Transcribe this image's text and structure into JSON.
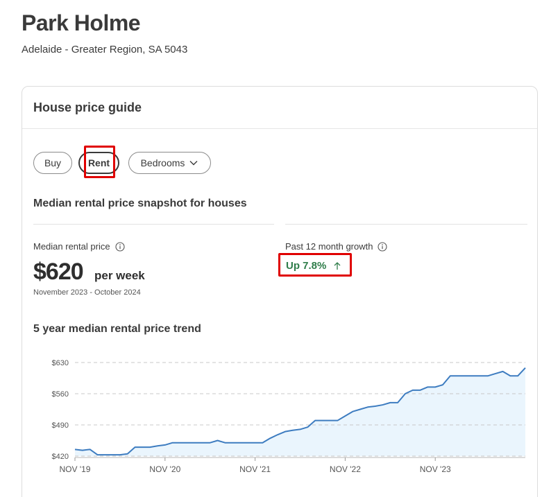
{
  "header": {
    "title": "Park Holme",
    "subtitle": "Adelaide - Greater Region, SA 5043"
  },
  "card": {
    "title": "House price guide",
    "tabs": {
      "buy": "Buy",
      "rent": "Rent",
      "bedrooms": "Bedrooms"
    },
    "snapshot_title": "Median rental price snapshot for houses",
    "median_label": "Median rental price",
    "median_price": "$620",
    "median_unit": "per week",
    "median_period": "November 2023 - October 2024",
    "growth_label": "Past 12 month growth",
    "growth_value": "Up 7.8%",
    "trend_title": "5 year median rental price trend"
  },
  "colors": {
    "line": "#3d7cc0",
    "fill": "#eaf5fd",
    "growth": "#2f7d4a",
    "highlight": "#e00000",
    "grid": "#c8c8c8"
  },
  "icons": {
    "info": "info-icon",
    "chevron": "chevron-down-icon",
    "growth_arrow": "arrow-up-icon"
  },
  "chart_data": {
    "type": "area",
    "title": "5 year median rental price trend",
    "xlabel": "",
    "ylabel": "",
    "ylim": [
      420,
      630
    ],
    "yticks": [
      420,
      490,
      560,
      630
    ],
    "ytick_labels": [
      "$420",
      "$490",
      "$560",
      "$630"
    ],
    "xtick_labels": [
      "NOV '19",
      "NOV '20",
      "NOV '21",
      "NOV '22",
      "NOV '23"
    ],
    "xtick_index": [
      0,
      12,
      24,
      36,
      48
    ],
    "grid": true,
    "series": [
      {
        "values": [
          435,
          433,
          435,
          423,
          423,
          423,
          423,
          425,
          440,
          440,
          440,
          443,
          445,
          450,
          450,
          450,
          450,
          450,
          450,
          455,
          450,
          450,
          450,
          450,
          450,
          450,
          460,
          468,
          475,
          478,
          480,
          485,
          500,
          500,
          500,
          500,
          510,
          520,
          525,
          530,
          532,
          535,
          540,
          540,
          560,
          568,
          568,
          575,
          575,
          580,
          600,
          600,
          600,
          600,
          600,
          600,
          605,
          610,
          600,
          600,
          618
        ]
      }
    ]
  }
}
